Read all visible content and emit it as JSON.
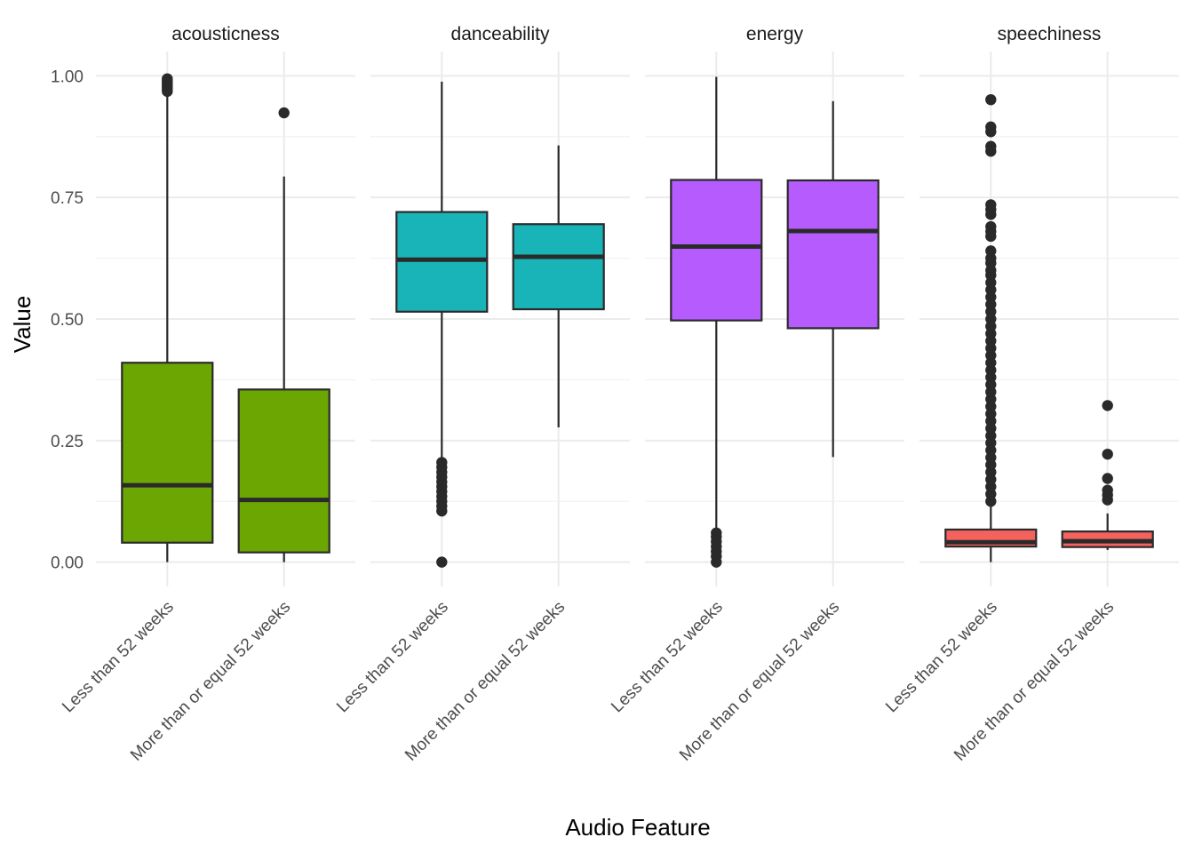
{
  "chart_data": {
    "type": "boxplot",
    "xlabel": "Audio Feature",
    "ylabel": "Value",
    "ylim": [
      -0.05,
      1.05
    ],
    "yticks": [
      0.0,
      0.25,
      0.5,
      0.75,
      1.0
    ],
    "ytick_labels": [
      "0.00",
      "0.25",
      "0.50",
      "0.75",
      "1.00"
    ],
    "grid": true,
    "legend": "none",
    "categories": [
      "Less than 52 weeks",
      "More than or equal 52 weeks"
    ],
    "facets": [
      {
        "name": "acousticness",
        "color": "#6ba603",
        "boxes": [
          {
            "category": "Less than 52 weeks",
            "min": 0.0,
            "q1": 0.04,
            "median": 0.158,
            "q3": 0.41,
            "max": 0.965,
            "outliers": [
              0.968,
              0.972,
              0.976,
              0.98,
              0.984,
              0.988,
              0.991,
              0.994
            ]
          },
          {
            "category": "More than or equal 52 weeks",
            "min": 0.0,
            "q1": 0.02,
            "median": 0.128,
            "q3": 0.355,
            "max": 0.793,
            "outliers": [
              0.924
            ]
          }
        ]
      },
      {
        "name": "danceability",
        "color": "#18b4b8",
        "boxes": [
          {
            "category": "Less than 52 weeks",
            "min": 0.21,
            "q1": 0.515,
            "median": 0.622,
            "q3": 0.72,
            "max": 0.988,
            "outliers": [
              0.0,
              0.105,
              0.115,
              0.125,
              0.135,
              0.145,
              0.155,
              0.165,
              0.175,
              0.185,
              0.195,
              0.205
            ]
          },
          {
            "category": "More than or equal 52 weeks",
            "min": 0.277,
            "q1": 0.52,
            "median": 0.628,
            "q3": 0.695,
            "max": 0.857,
            "outliers": []
          }
        ]
      },
      {
        "name": "energy",
        "color": "#b65cff",
        "boxes": [
          {
            "category": "Less than 52 weeks",
            "min": 0.062,
            "q1": 0.497,
            "median": 0.649,
            "q3": 0.786,
            "max": 0.998,
            "outliers": [
              0.0,
              0.012,
              0.022,
              0.032,
              0.042,
              0.052,
              0.06
            ]
          },
          {
            "category": "More than or equal 52 weeks",
            "min": 0.216,
            "q1": 0.481,
            "median": 0.681,
            "q3": 0.785,
            "max": 0.948,
            "outliers": []
          }
        ]
      },
      {
        "name": "speechiness",
        "color": "#f4625e",
        "boxes": [
          {
            "category": "Less than 52 weeks",
            "min": 0.0,
            "q1": 0.032,
            "median": 0.041,
            "q3": 0.067,
            "max": 0.12,
            "outliers": [
              0.125,
              0.14,
              0.155,
              0.17,
              0.185,
              0.2,
              0.215,
              0.23,
              0.245,
              0.26,
              0.275,
              0.29,
              0.305,
              0.32,
              0.335,
              0.35,
              0.365,
              0.38,
              0.395,
              0.41,
              0.425,
              0.44,
              0.455,
              0.47,
              0.485,
              0.5,
              0.515,
              0.53,
              0.545,
              0.56,
              0.575,
              0.59,
              0.6,
              0.615,
              0.625,
              0.64,
              0.67,
              0.68,
              0.69,
              0.715,
              0.725,
              0.735,
              0.845,
              0.855,
              0.885,
              0.895,
              0.951
            ]
          },
          {
            "category": "More than or equal 52 weeks",
            "min": 0.025,
            "q1": 0.031,
            "median": 0.043,
            "q3": 0.063,
            "max": 0.1,
            "outliers": [
              0.128,
              0.138,
              0.148,
              0.172,
              0.222,
              0.322
            ]
          }
        ]
      }
    ]
  }
}
